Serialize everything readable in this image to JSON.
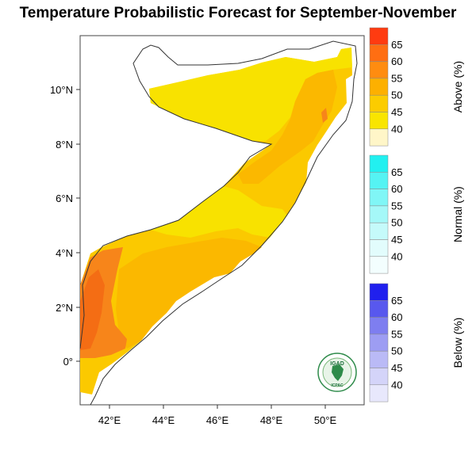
{
  "title": "Temperature Probabilistic Forecast for September-November",
  "axes": {
    "x_ticks": [
      "42°E",
      "44°E",
      "46°E",
      "48°E",
      "50°E"
    ],
    "y_ticks": [
      "10°N",
      "8°N",
      "6°N",
      "4°N",
      "2°N",
      "0°"
    ]
  },
  "colorbars": [
    {
      "title": "Above (%)",
      "levels": [
        "65",
        "60",
        "55",
        "50",
        "45",
        "40"
      ],
      "colors": [
        "#ff3b10",
        "#ff6e12",
        "#ff8c10",
        "#fdb000",
        "#fccc00",
        "#f9e500",
        "#fff6c8"
      ]
    },
    {
      "title": "Normal (%)",
      "levels": [
        "65",
        "60",
        "55",
        "50",
        "45",
        "40"
      ],
      "colors": [
        "#22f0f0",
        "#55f3f3",
        "#80f6f6",
        "#a5f8f8",
        "#c5fafa",
        "#e2fcfc",
        "#f3fefe"
      ]
    },
    {
      "title": "Below (%)",
      "levels": [
        "65",
        "60",
        "55",
        "50",
        "45",
        "40"
      ],
      "colors": [
        "#2020ee",
        "#5858ee",
        "#7e7ef0",
        "#9d9df3",
        "#babaf6",
        "#d4d4f9",
        "#e8e8fc"
      ]
    }
  ],
  "map_colors": {
    "c40": "#f8e200",
    "c45": "#fbc900",
    "c50": "#fbb800",
    "c55": "#f7851a",
    "c60": "#f46d14"
  },
  "logo": {
    "top_text": "IGAD",
    "bottom_text": "ICPAC"
  }
}
